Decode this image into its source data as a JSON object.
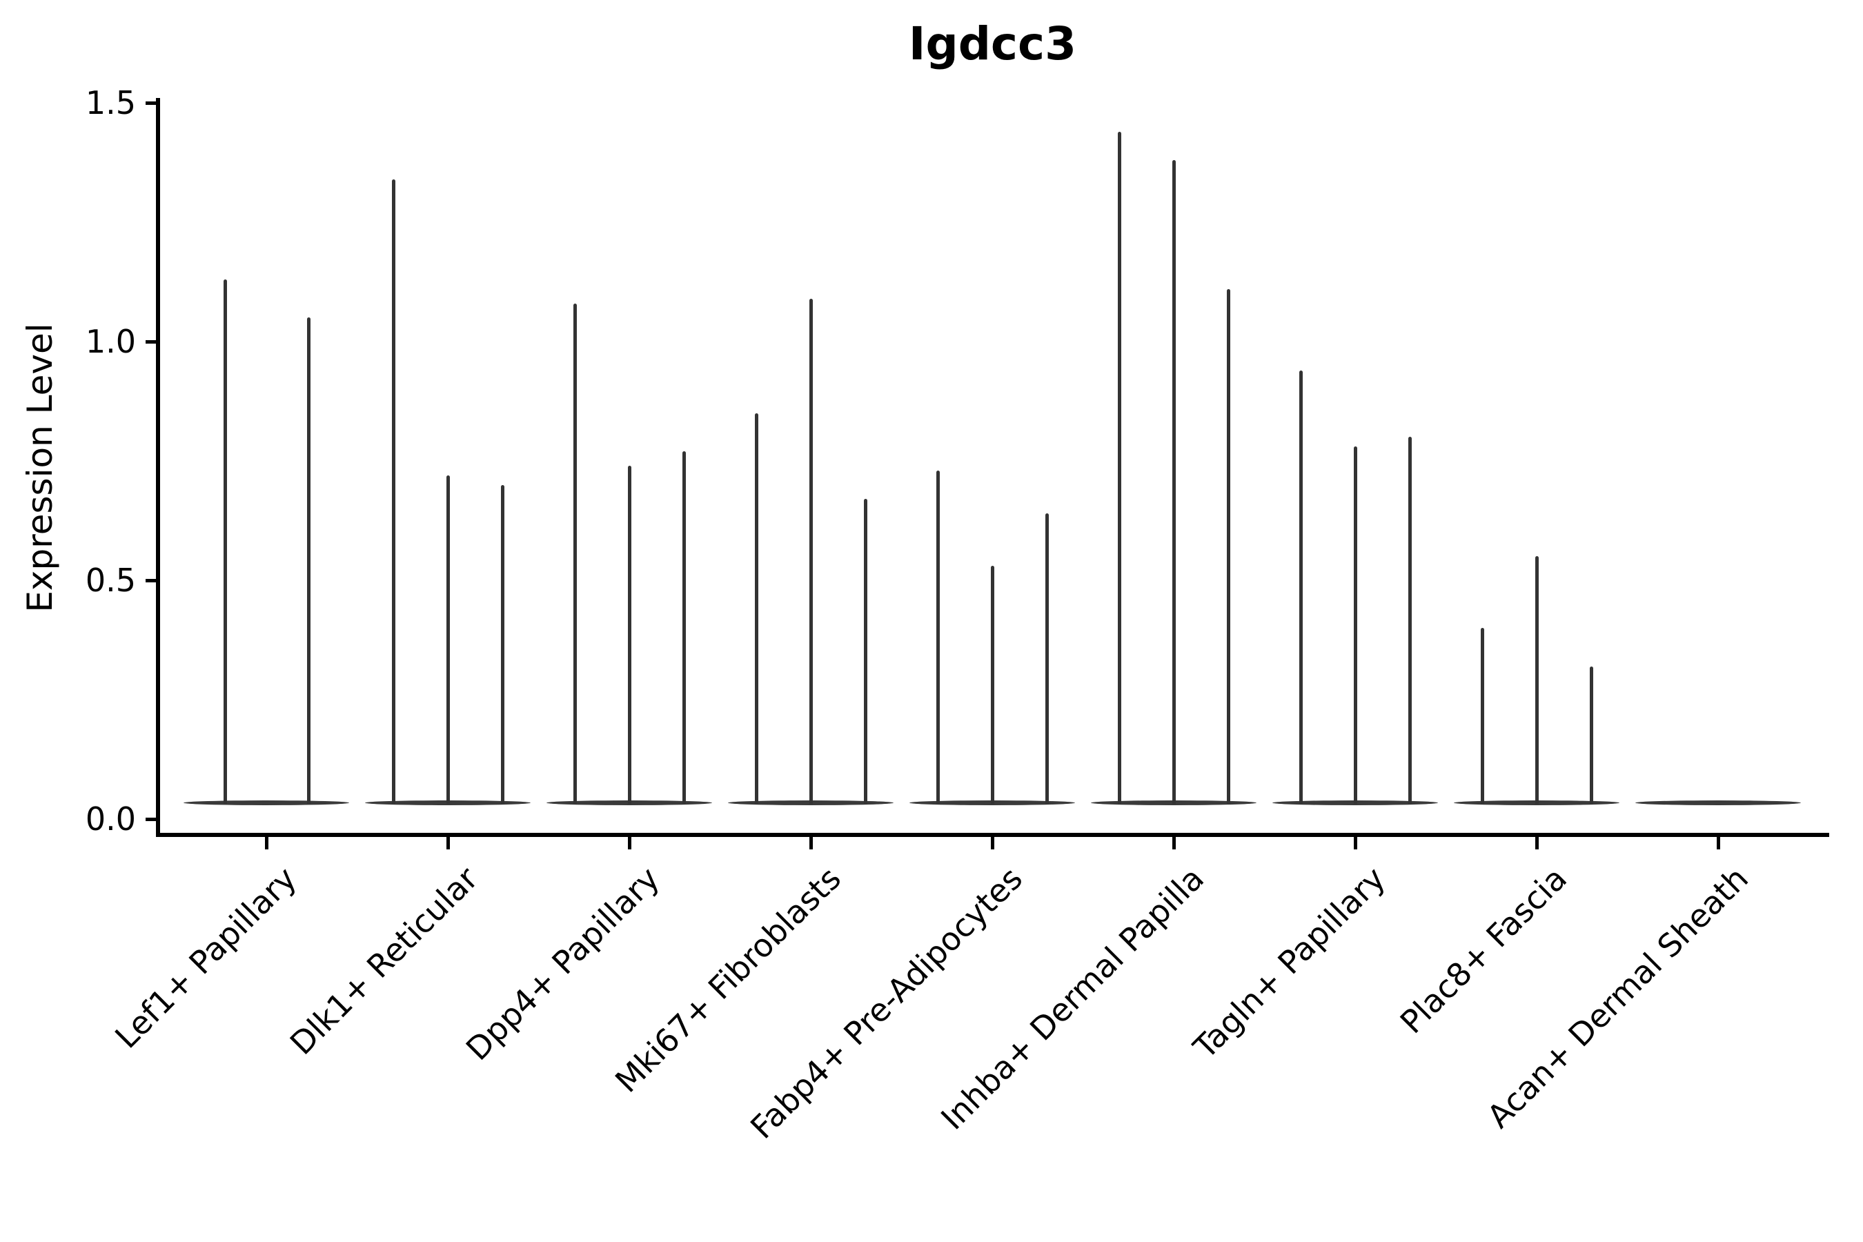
{
  "chart_data": {
    "type": "violin",
    "title": "Igdcc3",
    "ylabel": "Expression Level",
    "xlabel": "",
    "ylim": [
      0,
      1.5
    ],
    "yticks": [
      1.5,
      1.0,
      0.5,
      0.0
    ],
    "ytick_labels": [
      "1.5",
      "1.0",
      "0.5",
      "0.0"
    ],
    "grid": "off",
    "legend": "none",
    "x_tick_rotation_deg": 45,
    "categories": [
      "Lef1+ Papillary",
      "Dlk1+ Reticular",
      "Dpp4+ Papillary",
      "Mki67+ Fibroblasts",
      "Fabp4+ Pre-Adipocytes",
      "Inhba+ Dermal Papilla",
      "Tagln+ Papillary",
      "Plac8+ Fascia",
      "Acan+ Dermal Sheath"
    ],
    "series": [
      {
        "category": "Lef1+ Papillary",
        "violin_maxima": [
          1.13,
          1.05
        ]
      },
      {
        "category": "Dlk1+ Reticular",
        "violin_maxima": [
          1.34,
          0.72,
          0.7
        ]
      },
      {
        "category": "Dpp4+ Papillary",
        "violin_maxima": [
          1.08,
          0.74,
          0.77
        ]
      },
      {
        "category": "Mki67+ Fibroblasts",
        "violin_maxima": [
          0.85,
          1.09,
          0.67
        ]
      },
      {
        "category": "Fabp4+ Pre-Adipocytes",
        "violin_maxima": [
          0.73,
          0.53,
          0.64
        ]
      },
      {
        "category": "Inhba+ Dermal Papilla",
        "violin_maxima": [
          1.44,
          1.38,
          1.11
        ]
      },
      {
        "category": "Tagln+ Papillary",
        "violin_maxima": [
          0.94,
          0.78,
          0.8
        ]
      },
      {
        "category": "Plac8+ Fascia",
        "violin_maxima": [
          0.4,
          0.55,
          0.32
        ]
      },
      {
        "category": "Acan+ Dermal Sheath",
        "violin_maxima": []
      }
    ],
    "colors": {
      "violin": "#3a3a3a",
      "axis": "#000000",
      "text": "#000000",
      "background": "#ffffff"
    }
  }
}
